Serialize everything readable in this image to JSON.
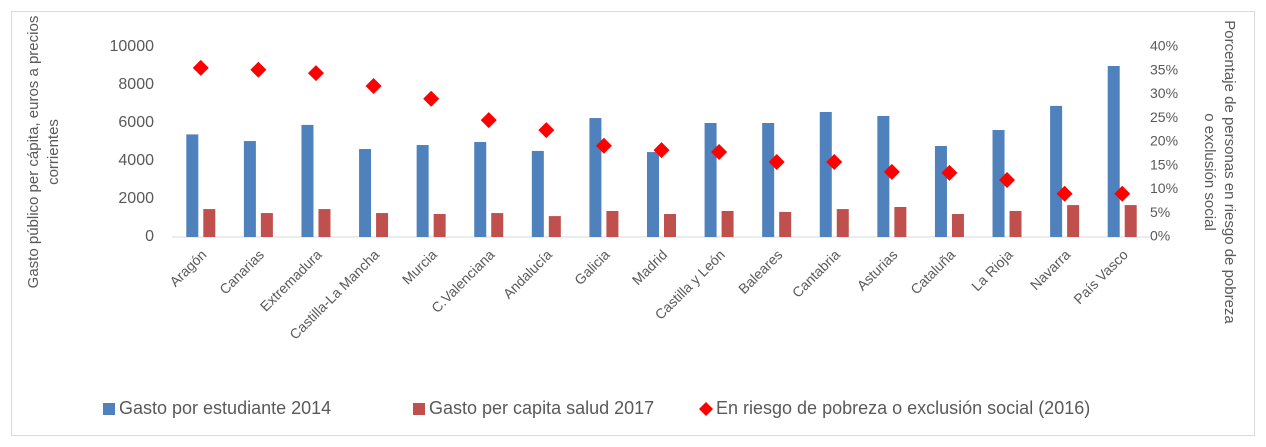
{
  "chart_data": {
    "type": "bar",
    "y_label": [
      "Gasto público per cápita, euros a precios",
      "corrientes"
    ],
    "y2_label": [
      "Porcentaje de personas en riesgo de pobreza",
      "o exclusión social"
    ],
    "categories": [
      "Aragón",
      "Canarias",
      "Extremadura",
      "Castilla-La Mancha",
      "Murcia",
      "C.Valenciana",
      "Andalucía",
      "Galicia",
      "Madrid",
      "Castilla y León",
      "Baleares",
      "Cantabria",
      "Asturias",
      "Cataluña",
      "La Rioja",
      "Navarra",
      "País Vasco"
    ],
    "series": [
      {
        "name": "Gasto por estudiante 2014",
        "color": "#4f81bd",
        "type": "bar",
        "values": [
          5400,
          5050,
          5900,
          4630,
          4840,
          5000,
          4530,
          6260,
          4470,
          6000,
          6000,
          6580,
          6370,
          4790,
          5630,
          6900,
          9000
        ]
      },
      {
        "name": "Gasto per capita salud 2017",
        "color": "#c0504d",
        "type": "bar",
        "values": [
          1470,
          1260,
          1470,
          1260,
          1210,
          1260,
          1100,
          1370,
          1210,
          1370,
          1320,
          1470,
          1580,
          1210,
          1370,
          1680,
          1680
        ]
      },
      {
        "name": "En riesgo de pobreza o exclusión social (2016)",
        "color": "#ff0000",
        "type": "scatter",
        "axis": "y2",
        "values": [
          35.6,
          35.2,
          34.5,
          31.8,
          29.1,
          24.6,
          22.5,
          19.2,
          18.3,
          17.9,
          15.8,
          15.8,
          13.7,
          13.5,
          12.0,
          9.1,
          9.1
        ]
      }
    ],
    "ylim": [
      0,
      10000
    ],
    "yticks": [
      0,
      2000,
      4000,
      6000,
      8000,
      10000
    ],
    "y2lim": [
      0,
      40
    ],
    "y2ticks": [
      {
        "value": 0,
        "label": "0%"
      },
      {
        "value": 5,
        "label": "5%"
      },
      {
        "value": 10,
        "label": "10%"
      },
      {
        "value": 15,
        "label": "15%"
      },
      {
        "value": 20,
        "label": "20%"
      },
      {
        "value": 25,
        "label": "25%"
      },
      {
        "value": 30,
        "label": "30%"
      },
      {
        "value": 35,
        "label": "35%"
      },
      {
        "value": 40,
        "label": "40%"
      }
    ],
    "legend": "bottom",
    "grid": false
  }
}
